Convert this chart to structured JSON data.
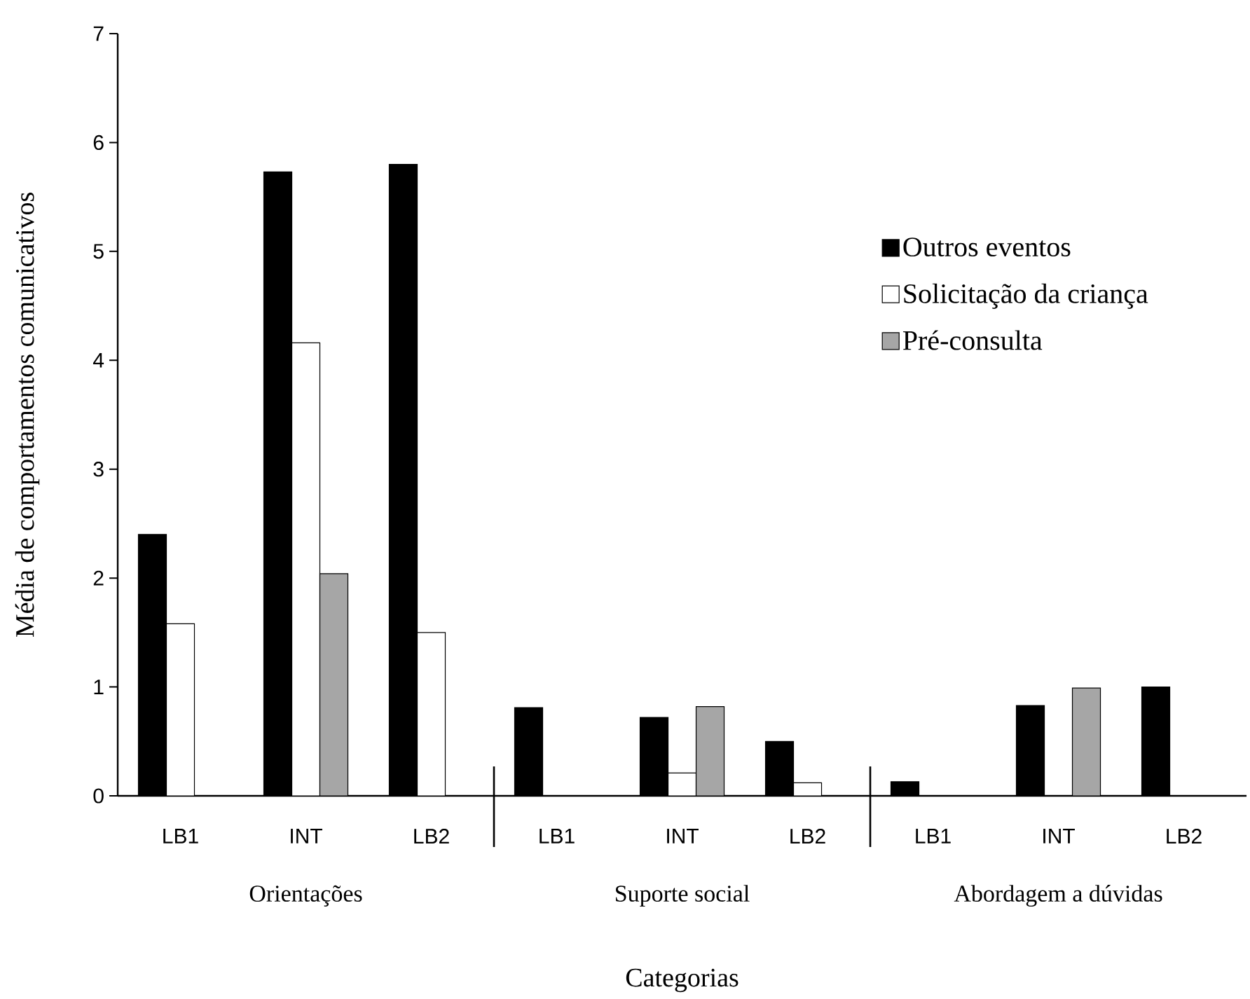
{
  "chart_data": {
    "type": "bar",
    "xlabel": "Categorias",
    "ylabel": "Média de comportamentos comunicativos",
    "categories": [
      "LB1",
      "INT",
      "LB2",
      "LB1",
      "INT",
      "LB2",
      "LB1",
      "INT",
      "LB2"
    ],
    "series": [
      {
        "name": "Outros eventos",
        "color": "#000000",
        "values": [
          2.4,
          5.73,
          5.8,
          0.81,
          0.72,
          0.5,
          0.13,
          0.83,
          1.0
        ]
      },
      {
        "name": "Solicitação da criança",
        "color": "#ffffff",
        "values": [
          1.58,
          4.16,
          1.5,
          null,
          0.21,
          0.12,
          null,
          null,
          null
        ]
      },
      {
        "name": "Pré-consulta",
        "color": "#a6a6a6",
        "values": [
          null,
          2.04,
          null,
          null,
          0.82,
          null,
          null,
          0.99,
          null
        ]
      }
    ],
    "annotations": [
      "Orientações",
      "Suporte social",
      "Abordagem a dúvidas"
    ],
    "ylim": [
      0,
      7
    ],
    "yticks": [
      0,
      1,
      2,
      3,
      4,
      5,
      6,
      7
    ],
    "grid": false,
    "legend": "right"
  }
}
